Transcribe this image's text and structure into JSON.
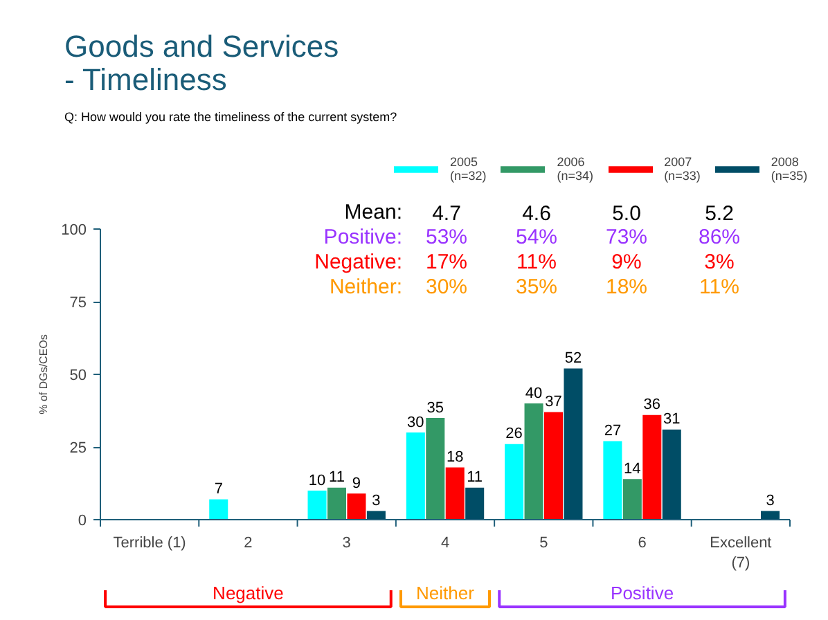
{
  "chart_data": {
    "type": "bar",
    "title": "Goods and Services\n- Timeliness",
    "subtitle": "Q:   How would you rate the timeliness of the current system?",
    "ylabel": "% of DGs/CEOs",
    "categories": [
      "Terrible (1)",
      "2",
      "3",
      "4",
      "5",
      "6",
      "Excellent\n(7)"
    ],
    "series": [
      {
        "name": "2005\n(n=32)",
        "color": "#00ffff",
        "values": [
          null,
          7,
          10,
          30,
          26,
          27,
          null
        ]
      },
      {
        "name": "2006\n(n=34)",
        "color": "#339966",
        "values": [
          null,
          null,
          11,
          35,
          40,
          14,
          null
        ]
      },
      {
        "name": "2007\n(n=33)",
        "color": "#ff0000",
        "values": [
          null,
          null,
          9,
          18,
          37,
          36,
          null
        ]
      },
      {
        "name": "2008\n(n=35)",
        "color": "#004d66",
        "values": [
          null,
          null,
          3,
          11,
          52,
          31,
          3
        ]
      }
    ],
    "ylim": [
      0,
      100
    ],
    "yticks": [
      0,
      25,
      50,
      75,
      100
    ],
    "data_labels": true,
    "legend": "top right",
    "annotations": [
      "Mean:",
      "4.7",
      "4.6",
      "5.0",
      "5.2",
      "Positive:",
      "53%",
      "54%",
      "73%",
      "86%",
      "Negative:",
      "17%",
      "11%",
      "9%",
      "3%",
      "Neither:",
      "30%",
      "35%",
      "18%",
      "11%",
      "Negative",
      "Neither",
      "Positive"
    ]
  }
}
